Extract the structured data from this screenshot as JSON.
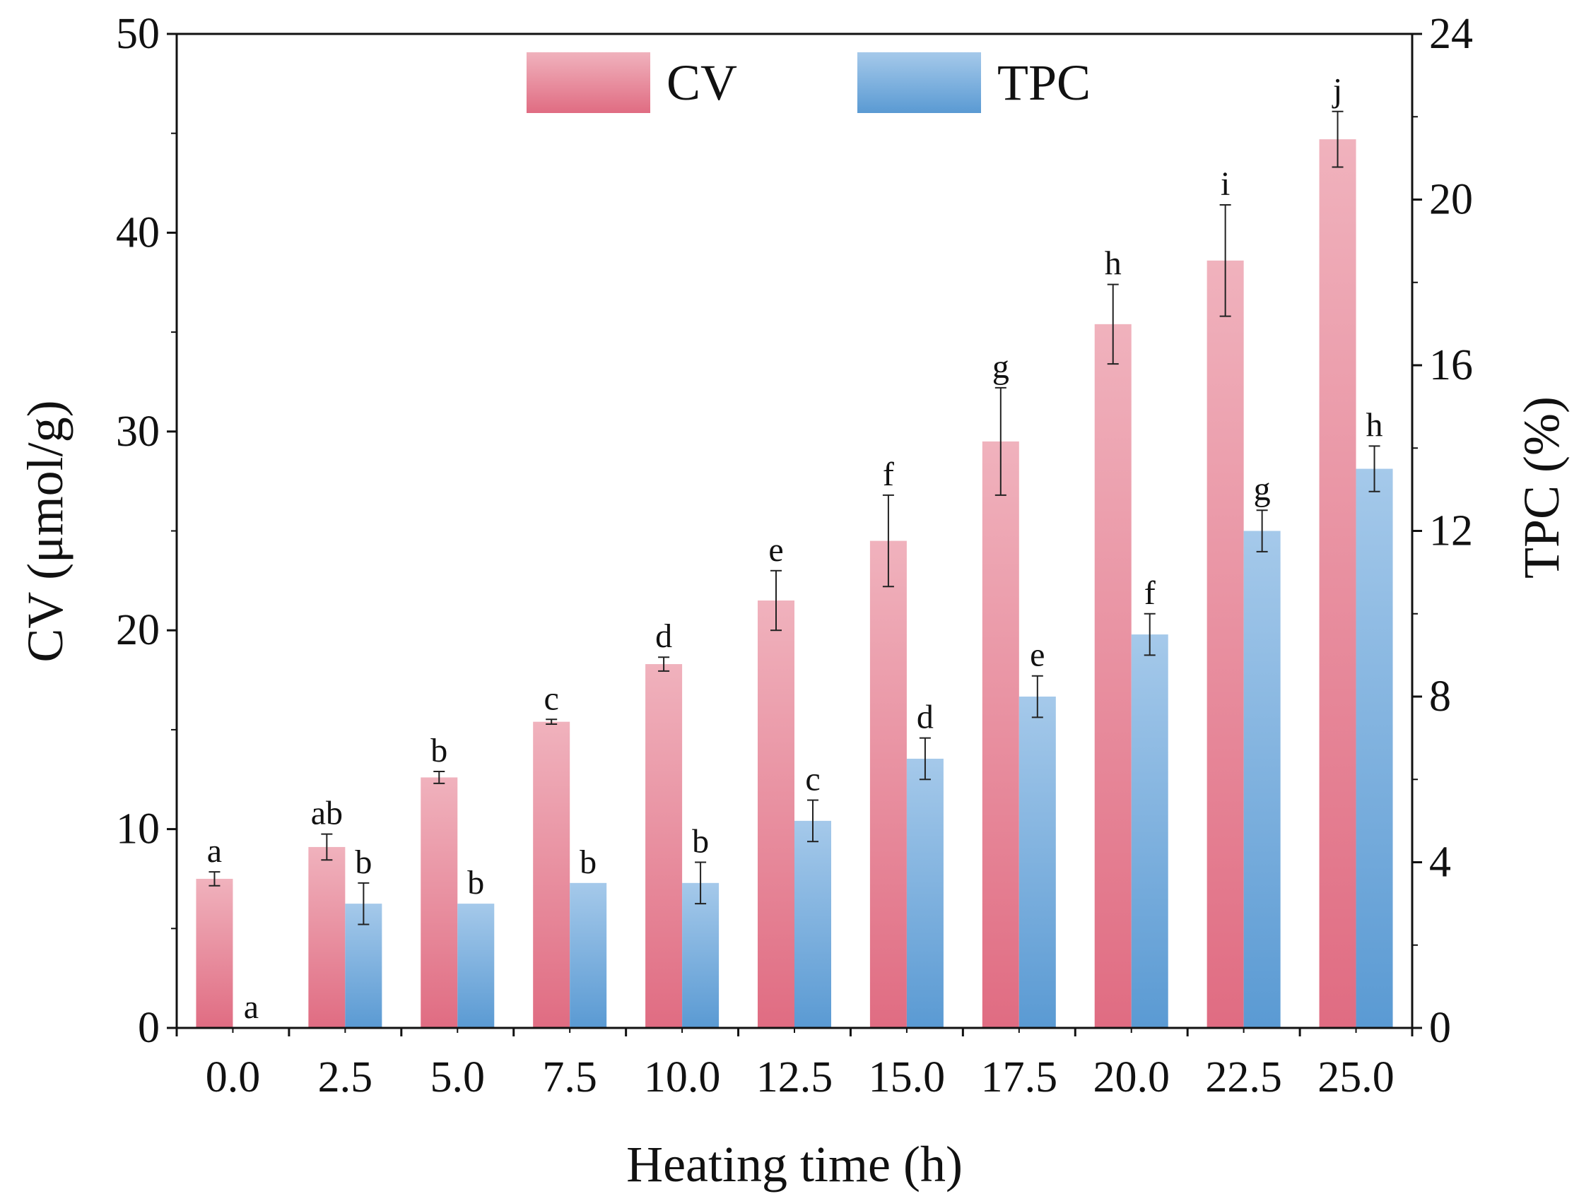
{
  "chart_data": {
    "type": "bar",
    "xlabel": "Heating time (h)",
    "ylabel_left": "CV (μmol/g)",
    "ylabel_right": "TPC (%)",
    "ylim_left": [
      0,
      50
    ],
    "ylim_right": [
      0,
      24
    ],
    "yticks_left": [
      "0",
      "10",
      "20",
      "30",
      "40",
      "50"
    ],
    "yticks_right": [
      "0",
      "4",
      "8",
      "12",
      "16",
      "20",
      "24"
    ],
    "categories": [
      "0.0",
      "2.5",
      "5.0",
      "7.5",
      "10.0",
      "12.5",
      "15.0",
      "17.5",
      "20.0",
      "22.5",
      "25.0"
    ],
    "legend_position": "top-center",
    "grid": false,
    "series": [
      {
        "name": "CV",
        "axis": "left",
        "color_top": "#f0b2bd",
        "color_bottom": "#e06c82",
        "values": [
          7.5,
          9.1,
          12.6,
          15.4,
          18.3,
          21.5,
          24.5,
          29.5,
          35.4,
          38.6,
          44.7
        ],
        "errors": [
          0.35,
          0.65,
          0.3,
          0.12,
          0.35,
          1.5,
          2.3,
          2.7,
          2.0,
          2.8,
          1.4
        ],
        "labels": [
          "a",
          "ab",
          "b",
          "c",
          "d",
          "e",
          "f",
          "g",
          "h",
          "i",
          "j"
        ]
      },
      {
        "name": "TPC",
        "axis": "right",
        "color_top": "#a5c9ea",
        "color_bottom": "#5a9ad3",
        "values": [
          0,
          3.0,
          3.0,
          3.5,
          3.5,
          5.0,
          6.5,
          8.0,
          9.5,
          12.0,
          13.5
        ],
        "errors": [
          0,
          0.5,
          0,
          0,
          0.5,
          0.5,
          0.5,
          0.5,
          0.5,
          0.5,
          0.55
        ],
        "labels": [
          "a",
          "b",
          "b",
          "b",
          "b",
          "c",
          "d",
          "e",
          "f",
          "g",
          "h"
        ]
      }
    ]
  }
}
